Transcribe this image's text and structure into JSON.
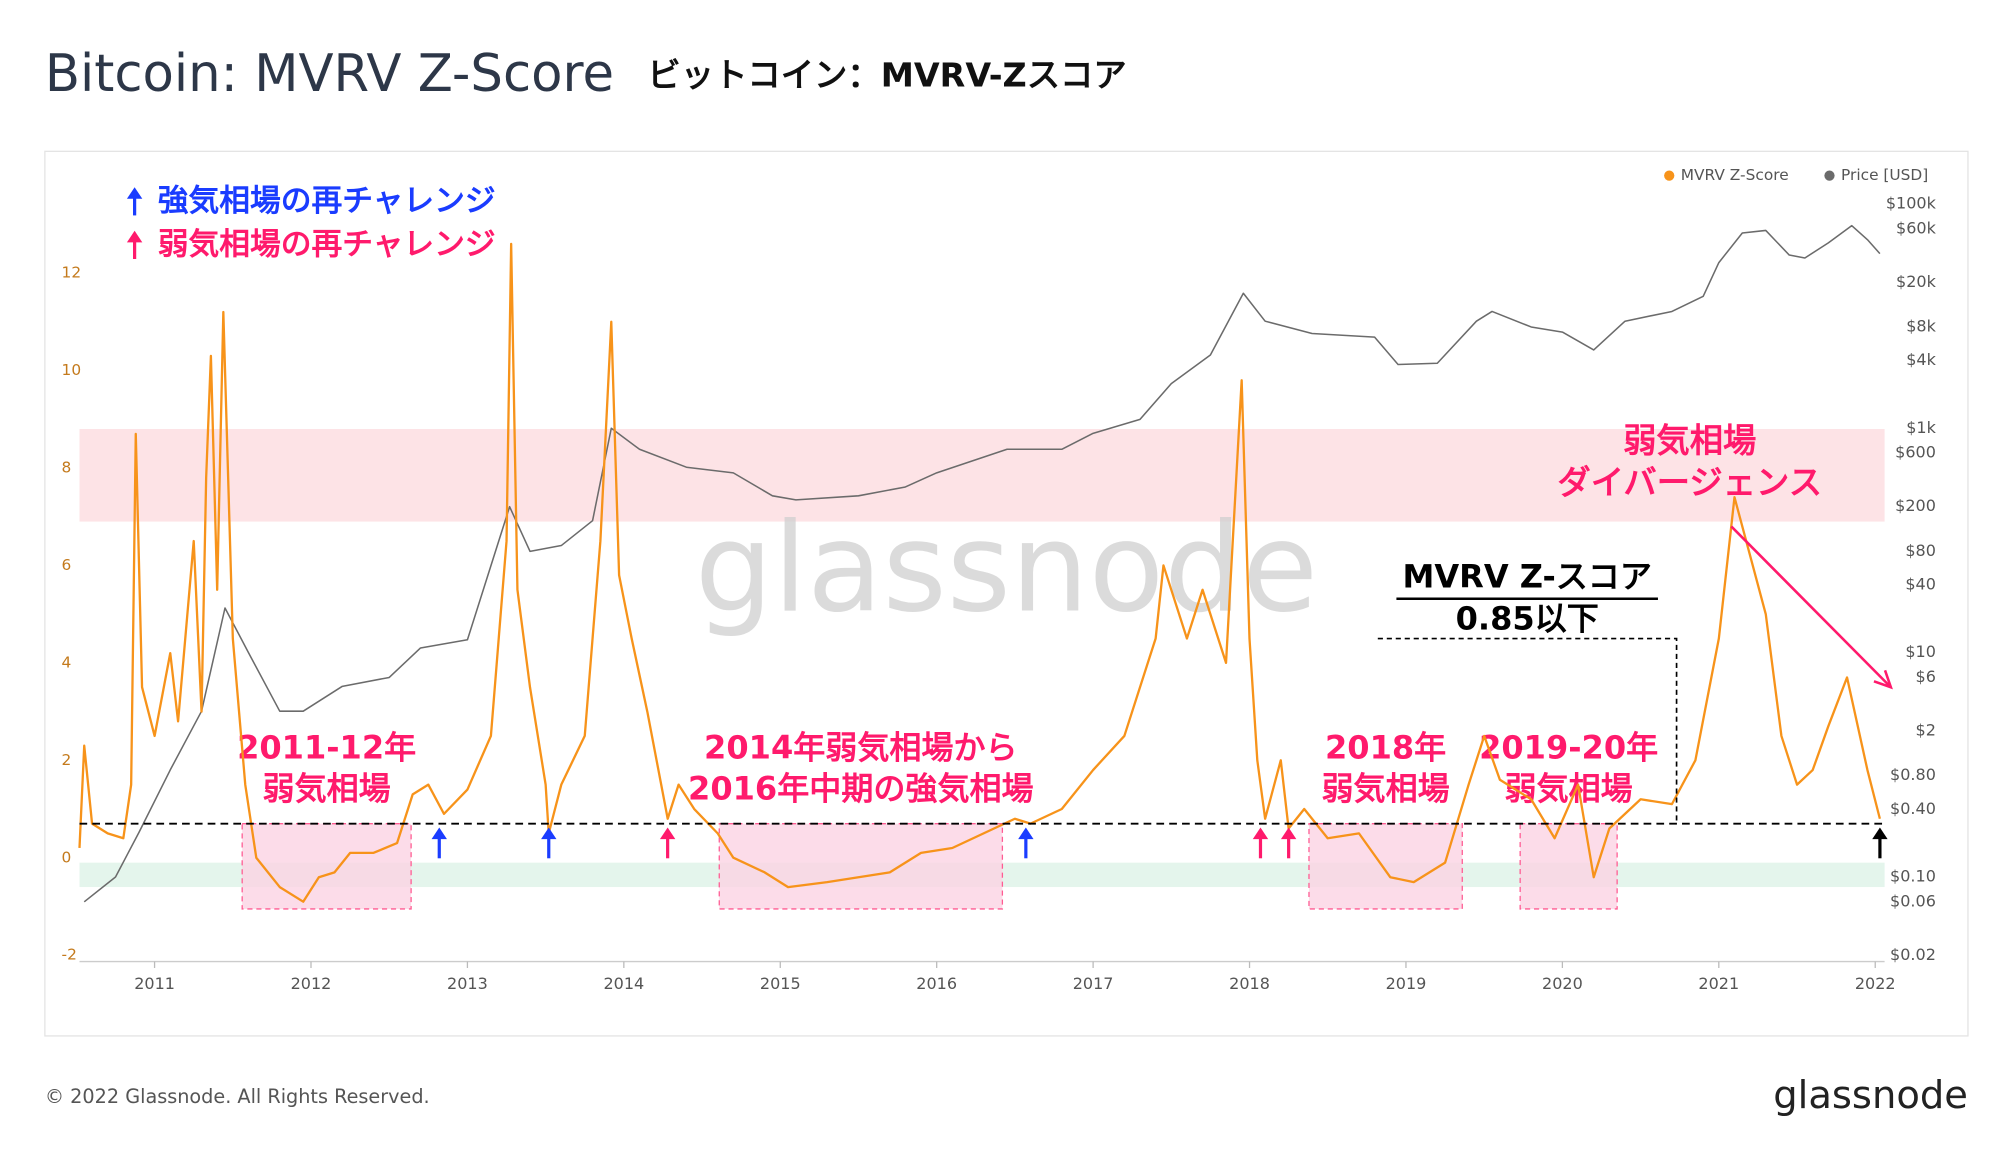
{
  "header": {
    "title": "Bitcoin: MVRV Z-Score",
    "subtitle": "ビットコイン：MVRV-Zスコア"
  },
  "chart_data": {
    "type": "line",
    "legend_position": "top-right",
    "xlim": [
      2010.52,
      2022.06
    ],
    "xticks": [
      2011,
      2012,
      2013,
      2014,
      2015,
      2016,
      2017,
      2018,
      2019,
      2020,
      2021,
      2022
    ],
    "ylim": [
      -2.13,
      13.92
    ],
    "yticks": [
      -2,
      0,
      2,
      4,
      6,
      8,
      10,
      12
    ],
    "y2scale": "log",
    "y2lim": [
      0.0176,
      165000
    ],
    "y2ticks": [
      {
        "value": 0.02,
        "label": "$0.02"
      },
      {
        "value": 0.06,
        "label": "$0.06"
      },
      {
        "value": 0.1,
        "label": "$0.10"
      },
      {
        "value": 0.4,
        "label": "$0.40"
      },
      {
        "value": 0.8,
        "label": "$0.80"
      },
      {
        "value": 2,
        "label": "$2"
      },
      {
        "value": 6,
        "label": "$6"
      },
      {
        "value": 10,
        "label": "$10"
      },
      {
        "value": 40,
        "label": "$40"
      },
      {
        "value": 80,
        "label": "$80"
      },
      {
        "value": 200,
        "label": "$200"
      },
      {
        "value": 600,
        "label": "$600"
      },
      {
        "value": 1000,
        "label": "$1k"
      },
      {
        "value": 4000,
        "label": "$4k"
      },
      {
        "value": 8000,
        "label": "$8k"
      },
      {
        "value": 20000,
        "label": "$20k"
      },
      {
        "value": 60000,
        "label": "$60k"
      },
      {
        "value": 100000,
        "label": "$100k"
      }
    ],
    "series": [
      {
        "name": "MVRV Z-Score",
        "color": "#f7931a",
        "x": [
          2010.52,
          2010.55,
          2010.6,
          2010.7,
          2010.8,
          2010.85,
          2010.88,
          2010.92,
          2011.0,
          2011.1,
          2011.15,
          2011.25,
          2011.3,
          2011.33,
          2011.36,
          2011.4,
          2011.44,
          2011.5,
          2011.58,
          2011.65,
          2011.8,
          2011.95,
          2012.05,
          2012.15,
          2012.25,
          2012.4,
          2012.55,
          2012.65,
          2012.75,
          2012.85,
          2013.0,
          2013.15,
          2013.25,
          2013.28,
          2013.32,
          2013.4,
          2013.5,
          2013.52,
          2013.6,
          2013.75,
          2013.85,
          2013.92,
          2013.97,
          2014.05,
          2014.15,
          2014.28,
          2014.35,
          2014.45,
          2014.6,
          2014.7,
          2014.9,
          2015.05,
          2015.3,
          2015.5,
          2015.7,
          2015.9,
          2016.1,
          2016.3,
          2016.5,
          2016.6,
          2016.8,
          2017.0,
          2017.2,
          2017.4,
          2017.45,
          2017.6,
          2017.7,
          2017.85,
          2017.95,
          2018.0,
          2018.05,
          2018.1,
          2018.2,
          2018.25,
          2018.35,
          2018.5,
          2018.7,
          2018.9,
          2019.05,
          2019.25,
          2019.4,
          2019.5,
          2019.6,
          2019.8,
          2019.95,
          2020.1,
          2020.2,
          2020.3,
          2020.5,
          2020.7,
          2020.85,
          2021.0,
          2021.1,
          2021.2,
          2021.3,
          2021.4,
          2021.5,
          2021.6,
          2021.7,
          2021.82,
          2021.95,
          2022.03
        ],
        "values": [
          0.2,
          2.3,
          0.7,
          0.5,
          0.4,
          1.5,
          8.7,
          3.5,
          2.5,
          4.2,
          2.8,
          6.5,
          3.0,
          7.8,
          10.3,
          5.5,
          11.2,
          4.5,
          1.5,
          0,
          -0.6,
          -0.9,
          -0.4,
          -0.3,
          0.1,
          0.1,
          0.3,
          1.3,
          1.5,
          0.9,
          1.4,
          2.5,
          6.5,
          12.6,
          5.5,
          3.5,
          1.5,
          0.5,
          1.5,
          2.5,
          6.5,
          11.0,
          5.8,
          4.5,
          3.0,
          0.8,
          1.5,
          1.0,
          0.5,
          0.0,
          -0.3,
          -0.6,
          -0.5,
          -0.4,
          -0.3,
          0.1,
          0.2,
          0.5,
          0.8,
          0.7,
          1.0,
          1.8,
          2.5,
          4.5,
          6.0,
          4.5,
          5.5,
          4.0,
          9.8,
          4.5,
          2.0,
          0.8,
          2.0,
          0.6,
          1.0,
          0.4,
          0.5,
          -0.4,
          -0.5,
          -0.1,
          1.5,
          2.5,
          1.6,
          1.2,
          0.4,
          1.5,
          -0.4,
          0.6,
          1.2,
          1.1,
          2.0,
          4.5,
          7.4,
          6.2,
          5.0,
          2.5,
          1.5,
          1.8,
          2.7,
          3.7,
          1.8,
          0.8
        ]
      },
      {
        "name": "Price [USD]",
        "color": "#6b6b6b",
        "axis": "y2",
        "x": [
          2010.55,
          2010.75,
          2010.9,
          2011.1,
          2011.3,
          2011.45,
          2011.6,
          2011.8,
          2011.95,
          2012.2,
          2012.5,
          2012.7,
          2013.0,
          2013.27,
          2013.4,
          2013.6,
          2013.8,
          2013.92,
          2014.1,
          2014.4,
          2014.7,
          2014.95,
          2015.1,
          2015.5,
          2015.8,
          2016.0,
          2016.45,
          2016.8,
          2017.0,
          2017.3,
          2017.5,
          2017.75,
          2017.96,
          2018.1,
          2018.4,
          2018.8,
          2018.95,
          2019.2,
          2019.45,
          2019.55,
          2019.8,
          2020.0,
          2020.2,
          2020.4,
          2020.7,
          2020.9,
          2021.0,
          2021.15,
          2021.3,
          2021.45,
          2021.55,
          2021.7,
          2021.85,
          2021.95,
          2022.03
        ],
        "values": [
          0.06,
          0.1,
          0.25,
          0.9,
          3,
          25,
          10,
          3,
          3,
          5,
          6,
          11,
          13,
          200,
          80,
          90,
          150,
          1000,
          650,
          450,
          400,
          250,
          230,
          250,
          300,
          400,
          650,
          650,
          900,
          1200,
          2500,
          4500,
          16000,
          9000,
          7000,
          6500,
          3700,
          3800,
          9000,
          11000,
          8000,
          7200,
          5000,
          9000,
          11000,
          15000,
          30000,
          55000,
          58000,
          35000,
          33000,
          45000,
          64000,
          48000,
          36000
        ]
      }
    ],
    "bands": [
      {
        "y": [
          6.9,
          8.8
        ],
        "color": "#fde3e6"
      },
      {
        "y": [
          -0.6,
          -0.1
        ],
        "color": "#e4f5ec"
      }
    ],
    "threshold": {
      "value": 0.7,
      "color": "#000000"
    },
    "boxes": [
      {
        "x": [
          2011.56,
          2012.64
        ],
        "y": [
          -1.05,
          0.7
        ],
        "lines": [
          "2011-12年",
          "弱気相場"
        ]
      },
      {
        "x": [
          2014.61,
          2016.42
        ],
        "y": [
          -1.05,
          0.7
        ],
        "lines": [
          "2014年弱気相場から",
          "2016年中期の強気相場"
        ]
      },
      {
        "x": [
          2018.38,
          2019.36
        ],
        "y": [
          -1.05,
          0.7
        ],
        "lines": [
          "2018年",
          "弱気相場"
        ]
      },
      {
        "x": [
          2019.73,
          2020.35
        ],
        "y": [
          -1.05,
          0.7
        ],
        "lines": [
          "2019-20年",
          "弱気相場"
        ]
      }
    ],
    "arrows": [
      {
        "x": 2012.82,
        "color": "#1a3cff"
      },
      {
        "x": 2013.52,
        "color": "#1a3cff"
      },
      {
        "x": 2016.57,
        "color": "#1a3cff"
      },
      {
        "x": 2014.28,
        "color": "#ff1a6c"
      },
      {
        "x": 2018.07,
        "color": "#ff1a6c"
      },
      {
        "x": 2018.25,
        "color": "#ff1a6c"
      },
      {
        "x": 2022.03,
        "color": "#000000"
      }
    ],
    "notes": [
      {
        "text": "強気相場の再チャレンジ",
        "color": "#1a3cff"
      },
      {
        "text": "弱気相場の再チャレンジ",
        "color": "#ff1a6c"
      }
    ],
    "divergence": {
      "lines": [
        "弱気相場",
        "ダイバージェンス"
      ],
      "color": "#ff1a6c",
      "from": [
        2021.08,
        6.8
      ],
      "to": [
        2022.1,
        3.5
      ]
    },
    "mvrv_note": {
      "lines": [
        "MVRV Z-スコア",
        "0.85以下"
      ],
      "x": [
        2018.82,
        2020.73
      ],
      "y": 4.5
    },
    "watermark": "glassnode"
  },
  "footer": {
    "copyright": "© 2022 Glassnode. All Rights Reserved.",
    "logo": "glassnode"
  }
}
